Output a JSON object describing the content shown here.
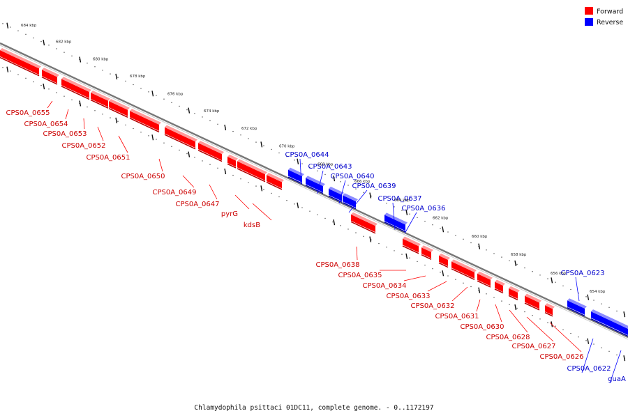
{
  "caption": "Chlamydophila psittaci 01DC11, complete genome. - 0..1172197",
  "legend": [
    {
      "label": "Forward",
      "color": "#ff0000"
    },
    {
      "label": "Reverse",
      "color": "#0000ff"
    }
  ],
  "colors": {
    "forward": "#ff0000",
    "reverse": "#0000ff",
    "backbone": "#777777"
  },
  "kbp_labels": [
    "684 kbp",
    "682 kbp",
    "680 kbp",
    "678 kbp",
    "676 kbp",
    "674 kbp",
    "672 kbp",
    "670 kbp",
    "668 kbp",
    "666 kbp",
    "664 kbp",
    "662 kbp",
    "660 kbp",
    "658 kbp",
    "656 kbp",
    "654 kbp"
  ],
  "forward_labels": [
    "CPS0A_0655",
    "CPS0A_0654",
    "CPS0A_0653",
    "CPS0A_0652",
    "CPS0A_0651",
    "CPS0A_0650",
    "CPS0A_0649",
    "CPS0A_0647",
    "pyrG",
    "kdsB",
    "CPS0A_0638",
    "CPS0A_0635",
    "CPS0A_0634",
    "CPS0A_0633",
    "CPS0A_0632",
    "CPS0A_0631",
    "CPS0A_0630",
    "CPS0A_0628",
    "CPS0A_0627",
    "CPS0A_0626"
  ],
  "reverse_labels": [
    "CPS0A_0644",
    "CPS0A_0643",
    "CPS0A_0640",
    "CPS0A_0639",
    "CPS0A_0637",
    "CPS0A_0636",
    "CPS0A_0623",
    "CPS0A_0622",
    "guaA"
  ]
}
